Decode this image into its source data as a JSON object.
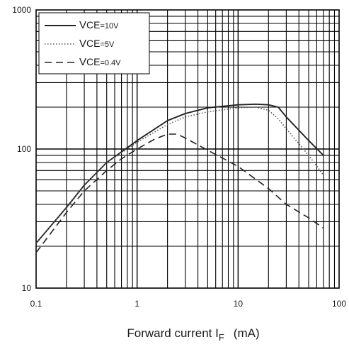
{
  "chart_data": {
    "type": "line",
    "title": "",
    "xlabel": "Forward current  I",
    "xlabel_sub": "F",
    "xlabel_unit": "(mA)",
    "ylabel": "",
    "x_scale": "log",
    "y_scale": "log",
    "xlim": [
      0.1,
      100
    ],
    "ylim": [
      10,
      1000
    ],
    "x_ticks": [
      "0.1",
      "1",
      "10",
      "100"
    ],
    "y_ticks": [
      "10",
      "100",
      "1000"
    ],
    "grid": true,
    "legend_position": "top-left",
    "series": [
      {
        "name": "VCE=10V",
        "name_main": "V",
        "name_sub": "CE",
        "name_val": "=10V",
        "style": "solid",
        "x": [
          0.1,
          0.2,
          0.3,
          0.5,
          1,
          2,
          3,
          5,
          10,
          15,
          20,
          25,
          30,
          50,
          70
        ],
        "y": [
          21,
          38,
          55,
          80,
          115,
          160,
          180,
          198,
          208,
          210,
          208,
          200,
          170,
          115,
          90
        ]
      },
      {
        "name": "VCE=5V",
        "name_main": "V",
        "name_sub": "CE",
        "name_val": "=5V",
        "style": "dotted",
        "x": [
          0.1,
          0.2,
          0.3,
          0.5,
          1,
          2,
          3,
          5,
          10,
          15,
          20,
          25,
          30,
          50,
          70
        ],
        "y": [
          21,
          38,
          55,
          80,
          112,
          150,
          170,
          185,
          198,
          200,
          190,
          165,
          140,
          90,
          65
        ]
      },
      {
        "name": "VCE=0.4V",
        "name_main": "V",
        "name_sub": "CE",
        "name_val": "=0.4V",
        "style": "dashed",
        "x": [
          0.1,
          0.2,
          0.3,
          0.5,
          0.7,
          1,
          1.5,
          2,
          2.5,
          3,
          5,
          10,
          20,
          30,
          50,
          70
        ],
        "y": [
          18,
          35,
          50,
          70,
          85,
          100,
          118,
          128,
          128,
          120,
          98,
          75,
          52,
          40,
          32,
          27
        ]
      }
    ]
  }
}
